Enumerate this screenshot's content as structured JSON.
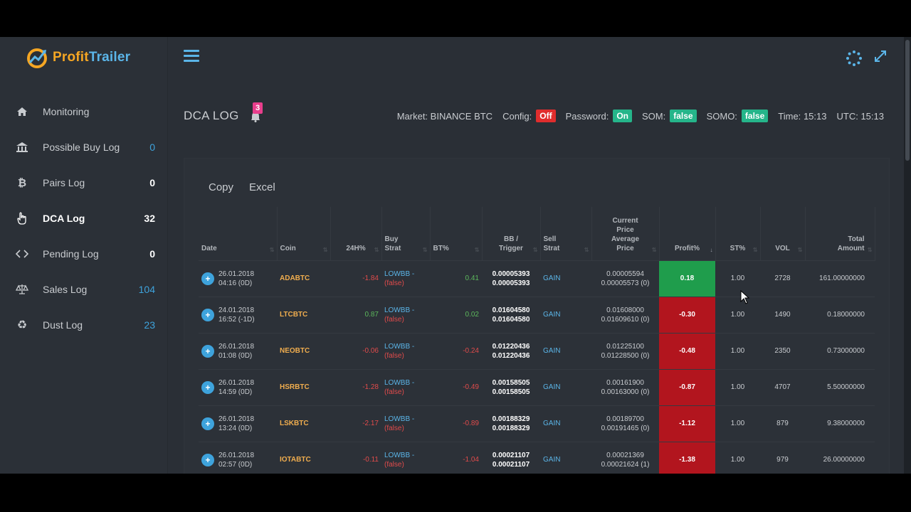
{
  "app": {
    "logo_part1": "Profit",
    "logo_part2": "Trailer"
  },
  "sidebar": {
    "items": [
      {
        "label": "Monitoring",
        "count": "",
        "icon": "home-icon"
      },
      {
        "label": "Possible Buy Log",
        "count": "0",
        "icon": "bank-icon"
      },
      {
        "label": "Pairs Log",
        "count": "0",
        "icon": "bitcoin-icon"
      },
      {
        "label": "DCA Log",
        "count": "32",
        "icon": "hand-pointer-icon"
      },
      {
        "label": "Pending Log",
        "count": "0",
        "icon": "code-icon"
      },
      {
        "label": "Sales Log",
        "count": "104",
        "icon": "scale-icon"
      },
      {
        "label": "Dust Log",
        "count": "23",
        "icon": "recycle-icon"
      }
    ]
  },
  "header": {
    "title": "DCA LOG",
    "notification_count": "3",
    "market_label": "Market:",
    "market_value": "BINANCE BTC",
    "config_label": "Config:",
    "config_value": "Off",
    "password_label": "Password:",
    "password_value": "On",
    "som_label": "SOM:",
    "som_value": "false",
    "somo_label": "SOMO:",
    "somo_value": "false",
    "time_label": "Time:",
    "time_value": "15:13",
    "utc_label": "UTC:",
    "utc_value": "15:13"
  },
  "toolbar": {
    "copy_label": "Copy",
    "excel_label": "Excel"
  },
  "table": {
    "headers": {
      "date": "Date",
      "coin": "Coin",
      "h24": "24H%",
      "buy_strat_1": "Buy",
      "buy_strat_2": "Strat",
      "bt": "BT%",
      "bb_1": "BB /",
      "bb_2": "Trigger",
      "sell_1": "Sell",
      "sell_2": "Strat",
      "cur_1": "Current",
      "cur_2": "Price",
      "cur_3": "Average",
      "cur_4": "Price",
      "profit": "Profit%",
      "st": "ST%",
      "vol": "VOL",
      "total_1": "Total",
      "total_2": "Amount"
    },
    "rows": [
      {
        "date1": "26.01.2018",
        "date2": "04:16 (0D)",
        "coin": "ADABTC",
        "h24": "-1.84",
        "buy1": "LOWBB -",
        "buy2": "(false)",
        "bt": "0.41",
        "bb1": "0.00005393",
        "bb2": "0.00005393",
        "sell": "GAIN",
        "cur1": "0.00005594",
        "cur2": "0.00005573 (0)",
        "profit": "0.18",
        "st": "1.00",
        "vol": "2728",
        "total": "161.00000000"
      },
      {
        "date1": "24.01.2018",
        "date2": "16:52 (-1D)",
        "coin": "LTCBTC",
        "h24": "0.87",
        "buy1": "LOWBB -",
        "buy2": "(false)",
        "bt": "0.02",
        "bb1": "0.01604580",
        "bb2": "0.01604580",
        "sell": "GAIN",
        "cur1": "0.01608000",
        "cur2": "0.01609610 (0)",
        "profit": "-0.30",
        "st": "1.00",
        "vol": "1490",
        "total": "0.18000000"
      },
      {
        "date1": "26.01.2018",
        "date2": "01:08 (0D)",
        "coin": "NEOBTC",
        "h24": "-0.06",
        "buy1": "LOWBB -",
        "buy2": "(false)",
        "bt": "-0.24",
        "bb1": "0.01220436",
        "bb2": "0.01220436",
        "sell": "GAIN",
        "cur1": "0.01225100",
        "cur2": "0.01228500 (0)",
        "profit": "-0.48",
        "st": "1.00",
        "vol": "2350",
        "total": "0.73000000"
      },
      {
        "date1": "26.01.2018",
        "date2": "14:59 (0D)",
        "coin": "HSRBTC",
        "h24": "-1.28",
        "buy1": "LOWBB -",
        "buy2": "(false)",
        "bt": "-0.49",
        "bb1": "0.00158505",
        "bb2": "0.00158505",
        "sell": "GAIN",
        "cur1": "0.00161900",
        "cur2": "0.00163000 (0)",
        "profit": "-0.87",
        "st": "1.00",
        "vol": "4707",
        "total": "5.50000000"
      },
      {
        "date1": "26.01.2018",
        "date2": "13:24 (0D)",
        "coin": "LSKBTC",
        "h24": "-2.17",
        "buy1": "LOWBB -",
        "buy2": "(false)",
        "bt": "-0.89",
        "bb1": "0.00188329",
        "bb2": "0.00188329",
        "sell": "GAIN",
        "cur1": "0.00189700",
        "cur2": "0.00191465 (0)",
        "profit": "-1.12",
        "st": "1.00",
        "vol": "879",
        "total": "9.38000000"
      },
      {
        "date1": "26.01.2018",
        "date2": "02:57 (0D)",
        "coin": "IOTABTC",
        "h24": "-0.11",
        "buy1": "LOWBB -",
        "buy2": "(false)",
        "bt": "-1.04",
        "bb1": "0.00021107",
        "bb2": "0.00021107",
        "sell": "GAIN",
        "cur1": "0.00021369",
        "cur2": "0.00021624 (1)",
        "profit": "-1.38",
        "st": "1.00",
        "vol": "979",
        "total": "26.00000000"
      }
    ]
  },
  "colors": {
    "accent": "#3ea3dc",
    "brand_orange": "#f5a623",
    "profit_positive": "#1f9d4c",
    "profit_negative": "#b2151e"
  }
}
